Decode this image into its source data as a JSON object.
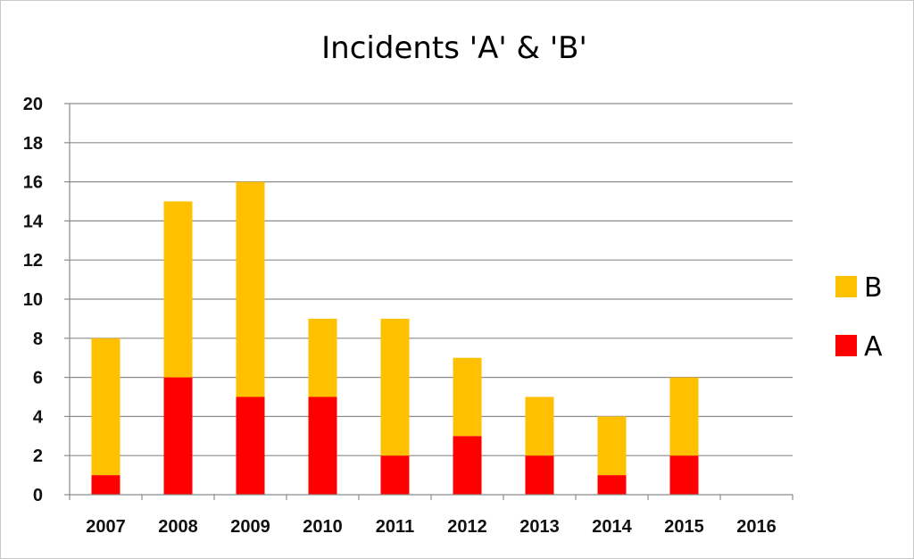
{
  "chart_data": {
    "type": "bar",
    "stacked": true,
    "title": "Incidents 'A' & 'B'",
    "xlabel": "",
    "ylabel": "",
    "categories": [
      "2007",
      "2008",
      "2009",
      "2010",
      "2011",
      "2012",
      "2013",
      "2014",
      "2015",
      "2016"
    ],
    "series": [
      {
        "name": "A",
        "values": [
          1,
          6,
          5,
          5,
          2,
          3,
          2,
          1,
          2,
          0
        ],
        "color": "#ff0000"
      },
      {
        "name": "B",
        "values": [
          7,
          9,
          11,
          4,
          7,
          4,
          3,
          3,
          4,
          0
        ],
        "color": "#ffc000"
      }
    ],
    "ylim": [
      0,
      20
    ],
    "yticks": [
      0,
      2,
      4,
      6,
      8,
      10,
      12,
      14,
      16,
      18,
      20
    ],
    "grid": true,
    "legend_position": "right"
  }
}
